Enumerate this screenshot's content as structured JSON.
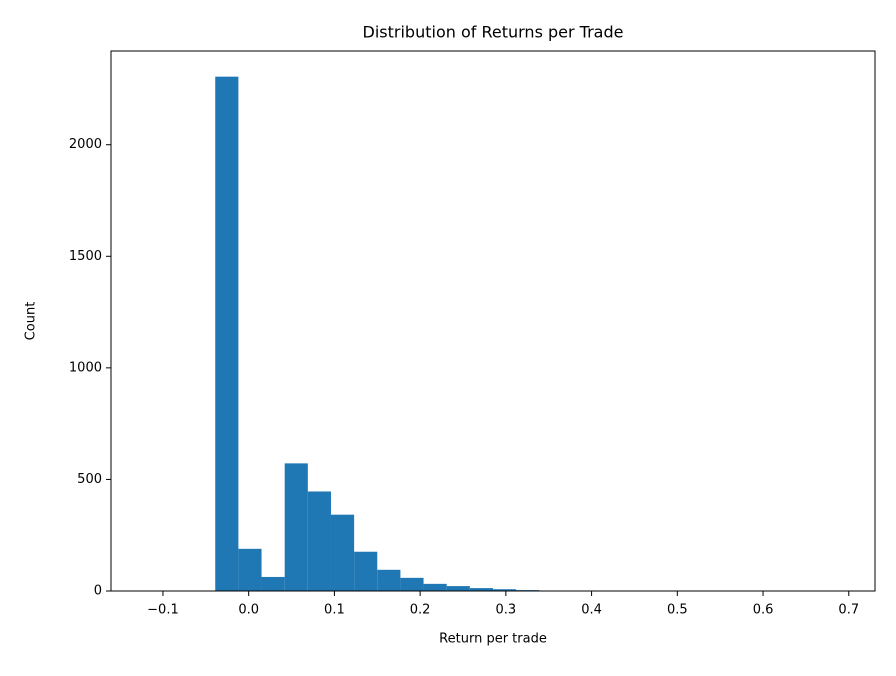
{
  "chart_data": {
    "type": "histogram",
    "title": "Distribution of Returns per Trade",
    "x_label": "Return per trade",
    "y_label": "Count",
    "color": "#1f77b4",
    "bins": [
      -0.12,
      -0.093,
      -0.066,
      -0.039,
      -0.012,
      0.015,
      0.042,
      0.069,
      0.096,
      0.123,
      0.15,
      0.177,
      0.204,
      0.231,
      0.258,
      0.285,
      0.312,
      0.339,
      0.366,
      0.393,
      0.42,
      0.447,
      0.474,
      0.501,
      0.528,
      0.555,
      0.582,
      0.609,
      0.636,
      0.663,
      0.69
    ],
    "values": [
      0,
      0,
      0,
      2305,
      189,
      63,
      572,
      446,
      342,
      176,
      95,
      59,
      32,
      22,
      13,
      8,
      4,
      2,
      1,
      1,
      0,
      1,
      0,
      0,
      0,
      0,
      0,
      0,
      0,
      1
    ],
    "xlim": [
      -0.1606,
      0.7306
    ],
    "ylim": [
      0,
      2420
    ],
    "xticks": [
      {
        "value": -0.1,
        "label": "−0.1"
      },
      {
        "value": 0,
        "label": "0.0"
      },
      0.1,
      0.2,
      0.3,
      0.4,
      0.5,
      0.6,
      0.7
    ],
    "yticks": [
      0,
      500,
      1000,
      1500,
      2000
    ],
    "grid": false
  }
}
